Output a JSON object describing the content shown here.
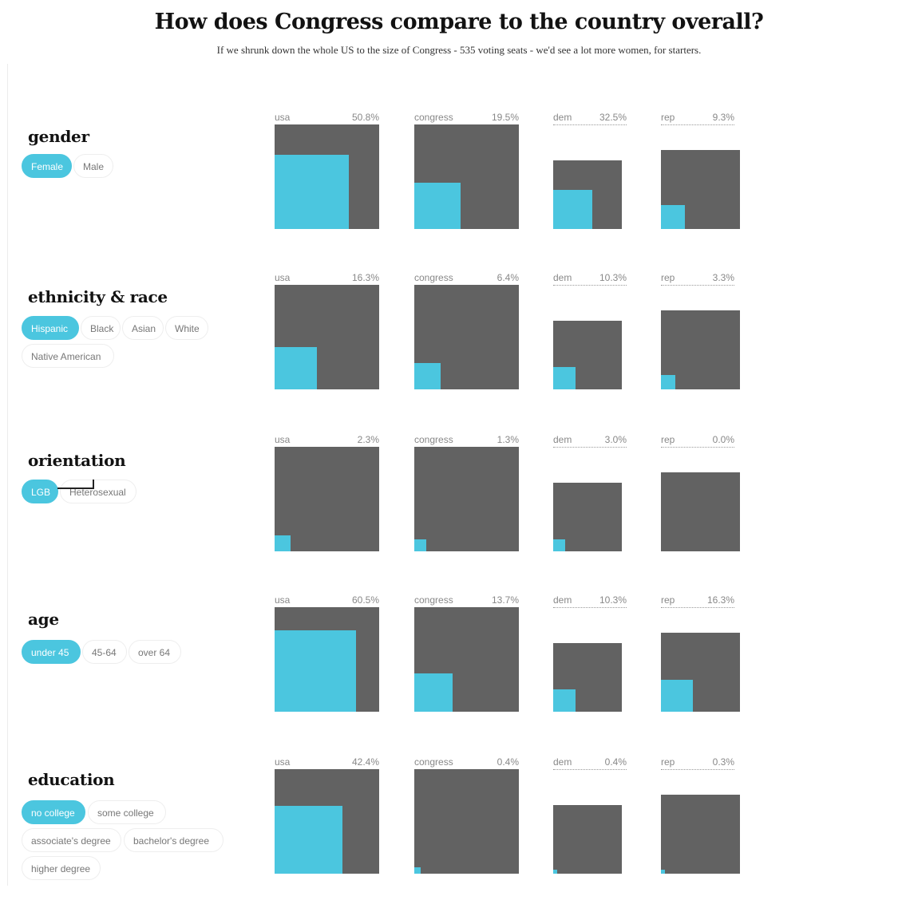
{
  "title": "How does Congress compare to the country overall?",
  "subtitle": "If we shrunk down the whole US to the size of Congress - 535 voting seats - we'd see a lot more women, for starters.",
  "colors": {
    "highlight": "#4bc6df",
    "square": "#626262",
    "active_option": "#4bc6df"
  },
  "chart_data": {
    "type": "area-squares",
    "groups": [
      "usa",
      "congress",
      "dem",
      "rep"
    ],
    "categories": [
      {
        "label": "gender",
        "options": [
          "Female",
          "Male"
        ],
        "selected": "Female",
        "values": {
          "usa": "50.8%",
          "congress": "19.5%",
          "dem": "32.5%",
          "rep": "9.3%"
        }
      },
      {
        "label": "ethnicity & race",
        "options": [
          "Hispanic",
          "Black",
          "Asian",
          "White",
          "Native American"
        ],
        "selected": "Hispanic",
        "values": {
          "usa": "16.3%",
          "congress": "6.4%",
          "dem": "10.3%",
          "rep": "3.3%"
        }
      },
      {
        "label": "orientation",
        "options": [
          "LGB",
          "Heterosexual"
        ],
        "selected": "LGB",
        "values": {
          "usa": "2.3%",
          "congress": "1.3%",
          "dem": "3.0%",
          "rep": "0.0%"
        }
      },
      {
        "label": "age",
        "options": [
          "under 45",
          "45-64",
          "over 64"
        ],
        "selected": "under 45",
        "values": {
          "usa": "60.5%",
          "congress": "13.7%",
          "dem": "10.3%",
          "rep": "16.3%"
        }
      },
      {
        "label": "education",
        "options": [
          "no college",
          "some college",
          "associate's degree",
          "bachelor's degree",
          "higher degree"
        ],
        "selected": "no college",
        "values": {
          "usa": "42.4%",
          "congress": "0.4%",
          "dem": "0.4%",
          "rep": "0.3%"
        }
      }
    ]
  }
}
